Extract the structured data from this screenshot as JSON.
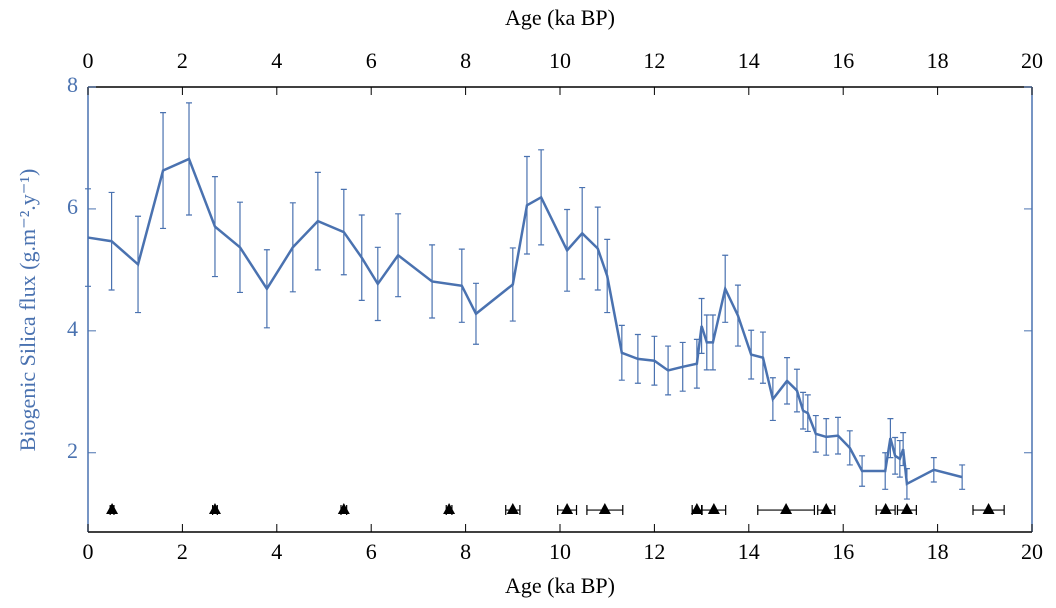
{
  "chart_data": {
    "type": "line",
    "xlabel": "Age (ka BP)",
    "x2label": "Age (ka BP)",
    "ylabel": "Biogenic Silica flux (g.m⁻².y⁻¹)",
    "xlim": [
      0,
      20
    ],
    "xticks": [
      0,
      2,
      4,
      6,
      8,
      10,
      12,
      14,
      16,
      18,
      20
    ],
    "ylim": [
      0.7,
      8
    ],
    "yticks": [
      2,
      4,
      6,
      8
    ],
    "axis_color": "#4a72b0",
    "series": [
      {
        "color": "#4a72b0",
        "x": [
          0,
          0.5,
          1.06,
          1.59,
          2.14,
          2.69,
          3.22,
          3.79,
          4.34,
          4.87,
          5.42,
          5.8,
          6.14,
          6.57,
          7.29,
          7.92,
          8.22,
          9.0,
          9.3,
          9.6,
          10.15,
          10.47,
          10.8,
          11.0,
          11.31,
          11.65,
          12.0,
          12.29,
          12.6,
          12.9,
          13.0,
          13.11,
          13.24,
          13.5,
          13.77,
          14.05,
          14.3,
          14.51,
          14.81,
          15.02,
          15.15,
          15.25,
          15.42,
          15.64,
          15.89,
          16.14,
          16.4,
          16.89,
          17.0,
          17.1,
          17.2,
          17.27,
          17.35,
          17.92,
          18.52
        ],
        "values": [
          5.53,
          5.47,
          5.09,
          6.63,
          6.82,
          5.71,
          5.37,
          4.69,
          5.37,
          5.8,
          5.62,
          5.2,
          4.77,
          5.24,
          4.81,
          4.74,
          4.28,
          4.76,
          6.06,
          6.19,
          5.32,
          5.6,
          5.35,
          4.9,
          3.64,
          3.54,
          3.51,
          3.35,
          3.41,
          3.46,
          4.08,
          3.81,
          3.81,
          4.69,
          4.25,
          3.61,
          3.56,
          2.88,
          3.18,
          3.02,
          2.69,
          2.65,
          2.31,
          2.26,
          2.28,
          2.08,
          1.7,
          1.7,
          2.24,
          1.95,
          1.9,
          2.06,
          1.49,
          1.72,
          1.6
        ],
        "errors": [
          0.8,
          0.8,
          0.79,
          0.95,
          0.92,
          0.82,
          0.74,
          0.64,
          0.73,
          0.8,
          0.7,
          0.7,
          0.6,
          0.68,
          0.6,
          0.6,
          0.5,
          0.6,
          0.8,
          0.78,
          0.67,
          0.75,
          0.68,
          0.6,
          0.45,
          0.4,
          0.4,
          0.4,
          0.4,
          0.4,
          0.45,
          0.45,
          0.45,
          0.55,
          0.5,
          0.4,
          0.42,
          0.35,
          0.38,
          0.35,
          0.3,
          0.3,
          0.3,
          0.3,
          0.3,
          0.28,
          0.25,
          0.3,
          0.32,
          0.3,
          0.3,
          0.27,
          0.25,
          0.2,
          0.2
        ]
      },
      {
        "type": "marker",
        "color": "#000000",
        "x": [
          0.51,
          2.69,
          5.42,
          7.65,
          9.0,
          10.15,
          10.95,
          12.9,
          13.26,
          14.79,
          15.64,
          16.9,
          17.35,
          19.08
        ],
        "xerr": [
          0.04,
          0.05,
          0.06,
          0.06,
          0.15,
          0.2,
          0.38,
          0.1,
          0.25,
          0.6,
          0.18,
          0.2,
          0.2,
          0.33
        ],
        "values": [
          1.06,
          1.06,
          1.06,
          1.06,
          1.06,
          1.06,
          1.06,
          1.06,
          1.06,
          1.06,
          1.06,
          1.06,
          1.06,
          1.06
        ]
      }
    ]
  }
}
